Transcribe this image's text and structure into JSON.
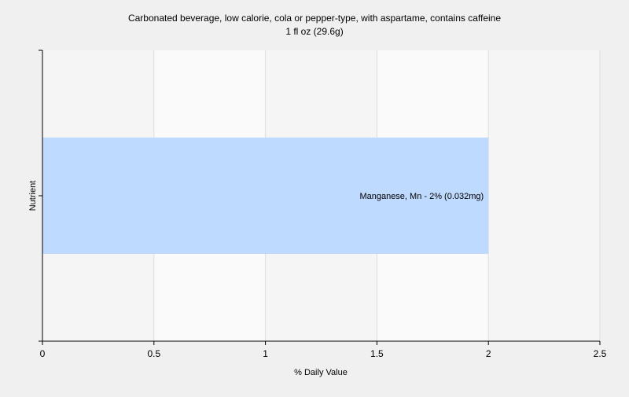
{
  "chart_data": {
    "type": "bar",
    "orientation": "horizontal",
    "title": "Carbonated beverage, low calorie, cola or pepper-type, with aspartame, contains caffeine",
    "subtitle": "1 fl oz (29.6g)",
    "xlabel": "% Daily Value",
    "ylabel": "Nutrient",
    "xlim": [
      0,
      2.5
    ],
    "x_ticks": [
      "0",
      "0.5",
      "1",
      "1.5",
      "2",
      "2.5"
    ],
    "grid": true,
    "categories": [
      "Manganese, Mn"
    ],
    "values": [
      2
    ],
    "data_labels": [
      "Manganese, Mn - 2% (0.032mg)"
    ],
    "colors": {
      "bar": "#bfdaff",
      "plot_background": "#f5f5f5",
      "page_background": "#f0f0f0",
      "gridline": "#dddddd",
      "axis": "#000000"
    }
  }
}
